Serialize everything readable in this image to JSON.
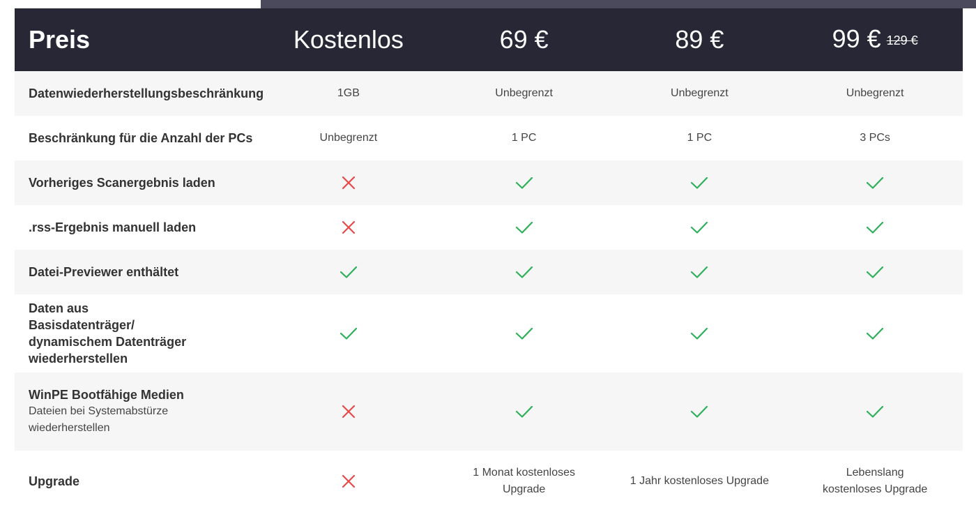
{
  "header": {
    "label": "Preis",
    "plans": [
      {
        "price": "Kostenlos",
        "old_price": ""
      },
      {
        "price": "69 €",
        "old_price": ""
      },
      {
        "price": "89 €",
        "old_price": ""
      },
      {
        "price": "99 €",
        "old_price": "129 €"
      }
    ]
  },
  "colors": {
    "header_bg": "#272736",
    "topband": "#4a4a5c",
    "check": "#2eaf5a",
    "cross": "#e84a4a",
    "row_alt": "#f6f6f6"
  },
  "rows": [
    {
      "label": "Datenwiederherstellungsbeschränkung",
      "sub": "",
      "cells": [
        {
          "type": "text",
          "text": "1GB"
        },
        {
          "type": "text",
          "text": "Unbegrenzt"
        },
        {
          "type": "text",
          "text": "Unbegrenzt"
        },
        {
          "type": "text",
          "text": "Unbegrenzt"
        }
      ]
    },
    {
      "label": "Beschränkung für die Anzahl der PCs",
      "sub": "",
      "cells": [
        {
          "type": "text",
          "text": "Unbegrenzt"
        },
        {
          "type": "text",
          "text": "1 PC"
        },
        {
          "type": "text",
          "text": "1 PC"
        },
        {
          "type": "text",
          "text": "3 PCs"
        }
      ]
    },
    {
      "label": "Vorheriges Scanergebnis laden",
      "sub": "",
      "cells": [
        {
          "type": "cross"
        },
        {
          "type": "check"
        },
        {
          "type": "check"
        },
        {
          "type": "check"
        }
      ]
    },
    {
      "label": ".rss-Ergebnis manuell laden",
      "sub": "",
      "cells": [
        {
          "type": "cross"
        },
        {
          "type": "check"
        },
        {
          "type": "check"
        },
        {
          "type": "check"
        }
      ]
    },
    {
      "label": "Datei-Previewer enthältet",
      "sub": "",
      "cells": [
        {
          "type": "check"
        },
        {
          "type": "check"
        },
        {
          "type": "check"
        },
        {
          "type": "check"
        }
      ]
    },
    {
      "label": "Daten aus Basisdatenträger/ dynamischem Datenträger wiederherstellen",
      "sub": "",
      "cells": [
        {
          "type": "check"
        },
        {
          "type": "check"
        },
        {
          "type": "check"
        },
        {
          "type": "check"
        }
      ]
    },
    {
      "label": "WinPE Bootfähige Medien",
      "sub": "Dateien bei Systemabstürze wiederherstellen",
      "cells": [
        {
          "type": "cross"
        },
        {
          "type": "check"
        },
        {
          "type": "check"
        },
        {
          "type": "check"
        }
      ]
    },
    {
      "label": "Upgrade",
      "sub": "",
      "cells": [
        {
          "type": "cross"
        },
        {
          "type": "text",
          "text": "1 Monat kostenloses Upgrade"
        },
        {
          "type": "text",
          "text": "1 Jahr kostenloses Upgrade"
        },
        {
          "type": "text",
          "text": "Lebenslang kostenloses Upgrade"
        }
      ]
    }
  ]
}
